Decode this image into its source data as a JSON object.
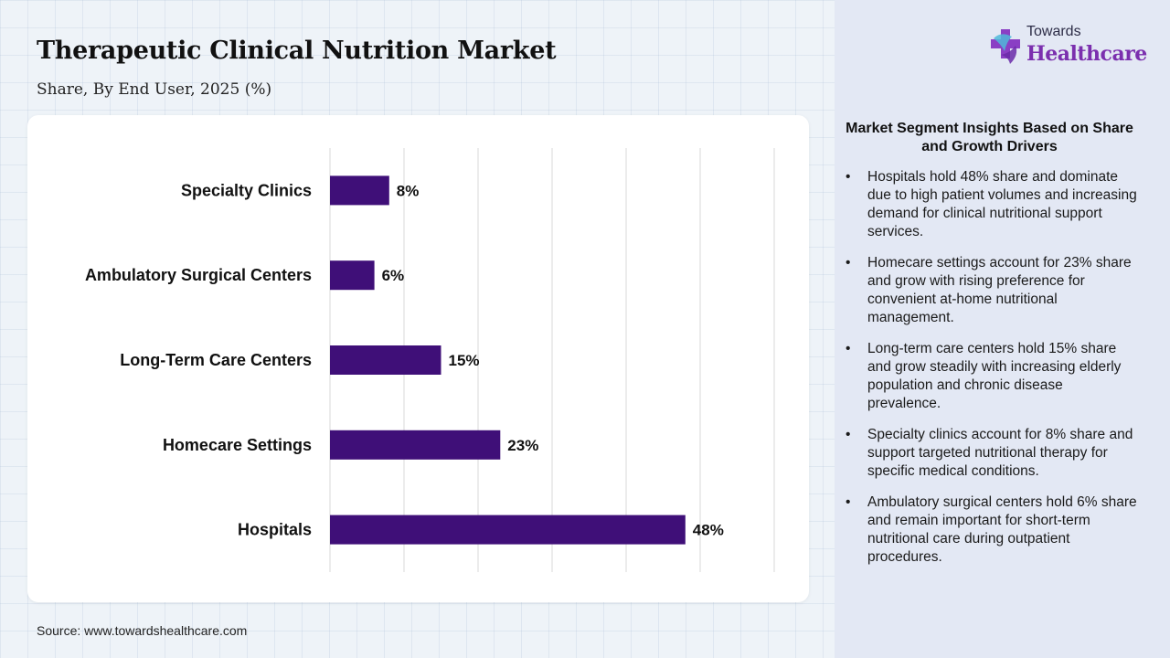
{
  "header": {
    "title": "Therapeutic Clinical Nutrition Market",
    "subtitle": "Share, By End User, 2025 (%)"
  },
  "logo": {
    "top_text": "Towards",
    "main_text": "Healthcare",
    "icon": "medical-cross-icon"
  },
  "source": "Source: www.towardshealthcare.com",
  "colors": {
    "bar": "#3f0f78",
    "sidebar_bg": "#e3e8f4",
    "logo_accent": "#7b2fae"
  },
  "chart_data": {
    "type": "bar",
    "orientation": "horizontal",
    "title": "Therapeutic Clinical Nutrition Market",
    "subtitle": "Share, By End User, 2025 (%)",
    "categories": [
      "Specialty Clinics",
      "Ambulatory Surgical Centers",
      "Long-Term Care Centers",
      "Homecare Settings",
      "Hospitals"
    ],
    "values": [
      8,
      6,
      15,
      23,
      48
    ],
    "value_labels": [
      "8%",
      "6%",
      "15%",
      "23%",
      "48%"
    ],
    "xlim": [
      0,
      60
    ],
    "grid": true,
    "legend": "none"
  },
  "insights": {
    "heading": "Market Segment Insights Based on Share and Growth Drivers",
    "bullet": "•",
    "items": [
      "Hospitals hold 48% share and dominate due to high patient volumes and increasing demand for clinical nutritional support services.",
      "Homecare settings account for 23% share and grow with rising preference for convenient at-home nutritional management.",
      "Long-term care centers hold 15% share and grow steadily with increasing elderly population and chronic disease prevalence.",
      "Specialty clinics account for 8% share and support targeted nutritional therapy for specific medical conditions.",
      "Ambulatory surgical centers hold 6% share and remain important for short-term nutritional care during outpatient procedures."
    ]
  }
}
